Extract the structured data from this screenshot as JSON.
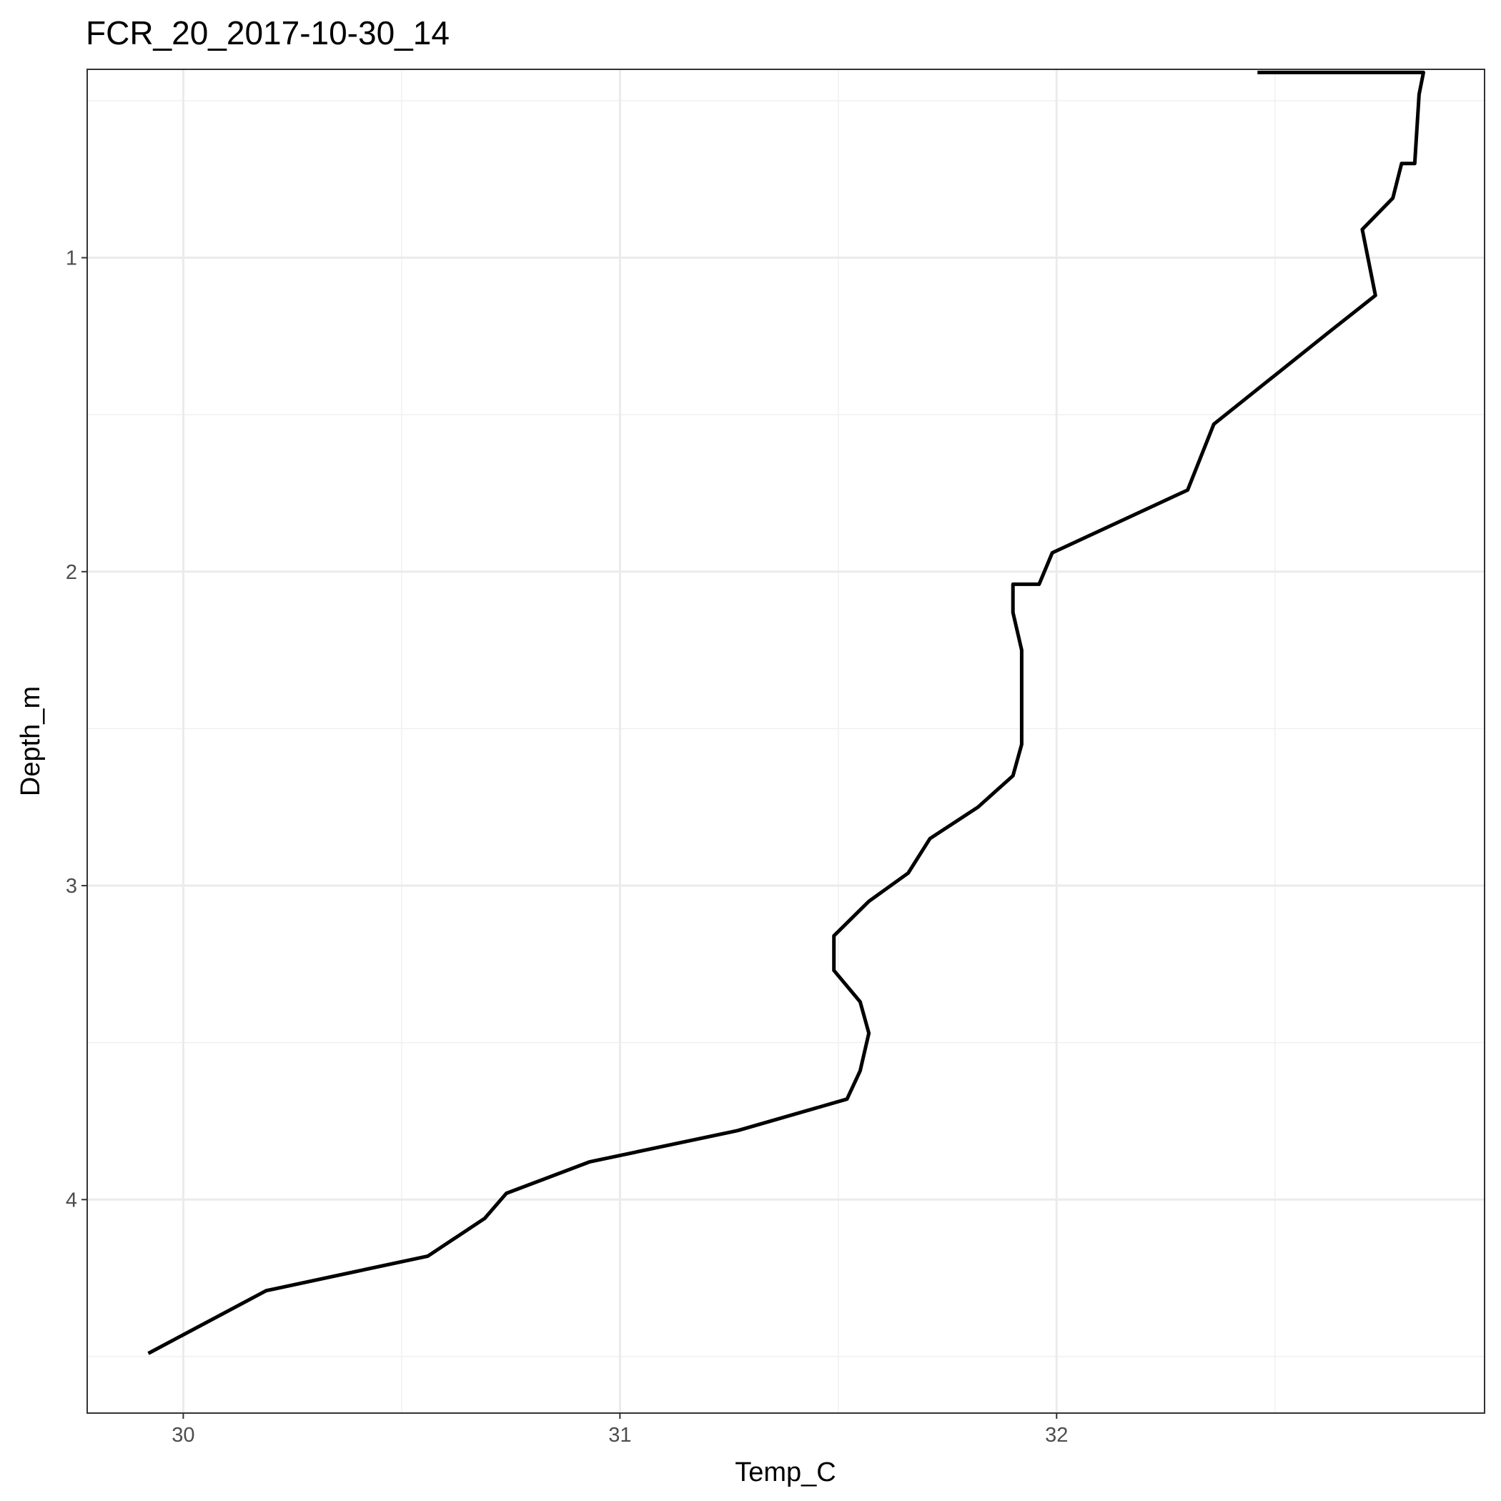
{
  "chart_data": {
    "type": "line",
    "title": "FCR_20_2017-10-30_14",
    "xlabel": "Temp_C",
    "ylabel": "Depth_m",
    "xlim": [
      29.78,
      32.98
    ],
    "ylim": [
      0.4,
      4.68
    ],
    "y_reversed": true,
    "x_ticks": [
      30,
      31,
      32
    ],
    "x_tick_labels": [
      "30",
      "31",
      "32"
    ],
    "y_ticks": [
      1,
      2,
      3,
      4
    ],
    "y_tick_labels": [
      "1",
      "2",
      "3",
      "4"
    ],
    "grid": true,
    "legend": "none",
    "series": [
      {
        "color": "#000000",
        "points": [
          [
            32.46,
            0.41
          ],
          [
            32.84,
            0.41
          ],
          [
            32.83,
            0.48
          ],
          [
            32.82,
            0.7
          ],
          [
            32.79,
            0.7
          ],
          [
            32.77,
            0.81
          ],
          [
            32.7,
            0.91
          ],
          [
            32.73,
            1.12
          ],
          [
            32.63,
            1.23
          ],
          [
            32.36,
            1.53
          ],
          [
            32.3,
            1.74
          ],
          [
            31.99,
            1.94
          ],
          [
            31.96,
            2.04
          ],
          [
            31.9,
            2.04
          ],
          [
            31.9,
            2.13
          ],
          [
            31.92,
            2.25
          ],
          [
            31.92,
            2.55
          ],
          [
            31.9,
            2.65
          ],
          [
            31.82,
            2.75
          ],
          [
            31.71,
            2.85
          ],
          [
            31.66,
            2.96
          ],
          [
            31.57,
            3.05
          ],
          [
            31.49,
            3.16
          ],
          [
            31.49,
            3.27
          ],
          [
            31.55,
            3.37
          ],
          [
            31.57,
            3.47
          ],
          [
            31.55,
            3.59
          ],
          [
            31.52,
            3.68
          ],
          [
            31.27,
            3.78
          ],
          [
            30.93,
            3.88
          ],
          [
            30.74,
            3.98
          ],
          [
            30.69,
            4.06
          ],
          [
            30.56,
            4.18
          ],
          [
            30.19,
            4.29
          ],
          [
            29.92,
            4.49
          ]
        ]
      }
    ]
  }
}
